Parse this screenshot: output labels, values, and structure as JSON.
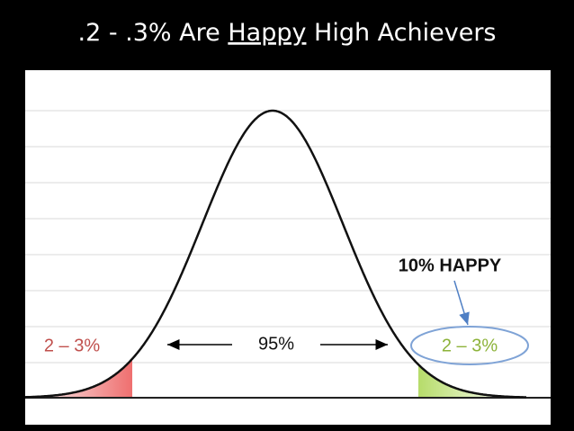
{
  "title": {
    "before": ".2 - .3% Are ",
    "underlined": "Happy",
    "after": " High Achievers"
  },
  "labels": {
    "left_tail": "2 – 3%",
    "middle": "95%",
    "right_tail": "2 – 3%",
    "happy": "10% HAPPY"
  }
}
